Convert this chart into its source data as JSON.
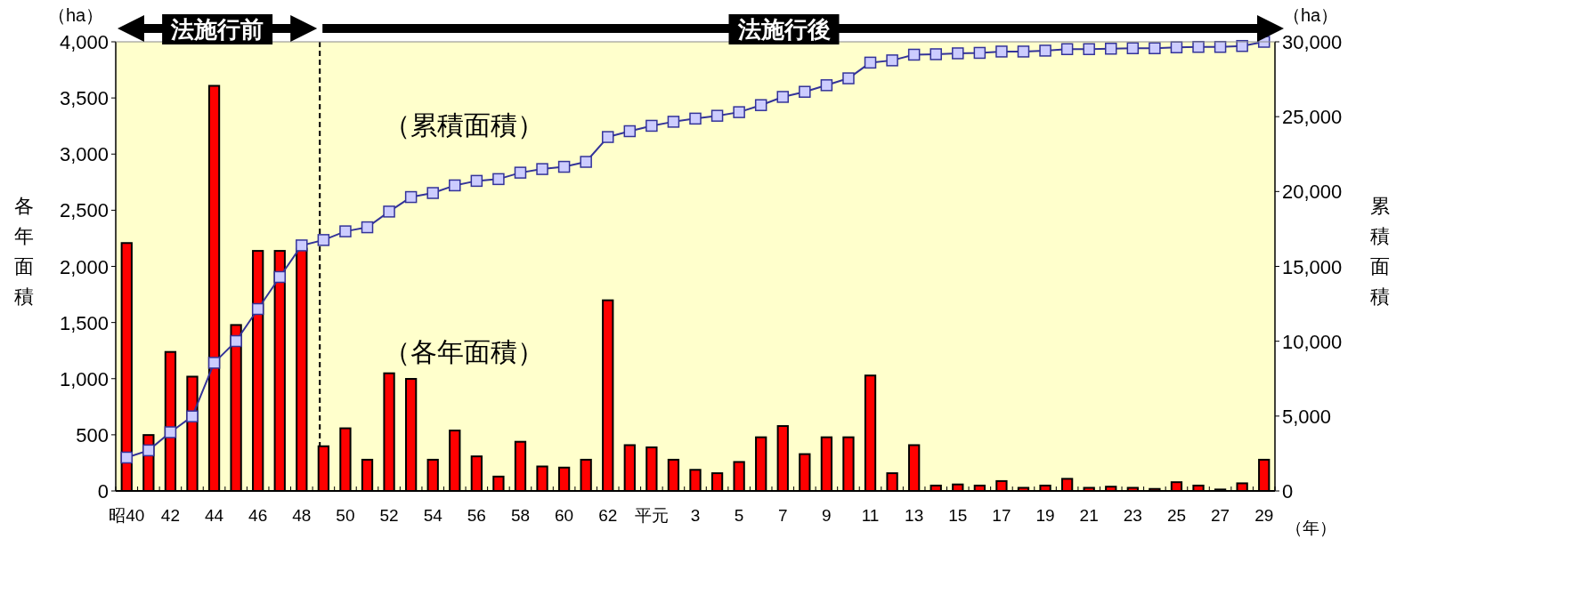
{
  "chart_data": {
    "type": "bar",
    "xlabel": "（年）",
    "ylabel": "各年面積",
    "y2label": "累積面積",
    "annotations": [
      "法施行前",
      "法施行後",
      "（ha）",
      "（ha）"
    ],
    "categories": [
      "昭40",
      null,
      "42",
      null,
      "44",
      null,
      "46",
      null,
      "48",
      null,
      "50",
      null,
      "52",
      null,
      "54",
      null,
      "56",
      null,
      "58",
      null,
      "60",
      null,
      "62",
      null,
      "平元",
      null,
      "3",
      null,
      "5",
      null,
      "7",
      null,
      "9",
      null,
      "11",
      null,
      "13",
      null,
      "15",
      null,
      "17",
      null,
      "19",
      null,
      "21",
      null,
      "23",
      null,
      "25",
      null,
      "27",
      null,
      "29"
    ],
    "series": [
      {
        "name": "（各年面積）",
        "color": "#ff0000",
        "values": [
          2200,
          490,
          1230,
          1010,
          3600,
          1470,
          2130,
          2130,
          2150,
          390,
          550,
          270,
          1040,
          990,
          270,
          530,
          300,
          120,
          430,
          210,
          200,
          270,
          1690,
          400,
          380,
          270,
          180,
          150,
          250,
          470,
          570,
          320,
          470,
          470,
          1020,
          150,
          400,
          40,
          50,
          40,
          80,
          20,
          40,
          100,
          20,
          30,
          20,
          10,
          70,
          40,
          5,
          60,
          270
        ]
      },
      {
        "name": "（累積面積）",
        "type": "line",
        "axis": "y2",
        "color": "#333399",
        "values": [
          2230,
          2710,
          3920,
          4980,
          8560,
          10010,
          12150,
          14290,
          16400,
          16760,
          17340,
          17610,
          18660,
          19630,
          19900,
          20410,
          20710,
          20830,
          21260,
          21500,
          21650,
          21980,
          23640,
          24030,
          24390,
          24660,
          24870,
          25060,
          25300,
          25770,
          26320,
          26660,
          27100,
          27560,
          28610,
          28760,
          29140,
          29170,
          29230,
          29260,
          29350,
          29350,
          29410,
          29510,
          29510,
          29540,
          29570,
          29570,
          29630,
          29660,
          29660,
          29720,
          30000
        ]
      }
    ],
    "ylim": [
      0,
      4000
    ],
    "yticks": [
      0,
      500,
      {
        "value": 1000,
        "label": "1,000"
      },
      {
        "value": 1500,
        "label": "1,500"
      },
      {
        "value": 2000,
        "label": "2,000"
      },
      {
        "value": 2500,
        "label": "2,500"
      },
      {
        "value": 3000,
        "label": "3,000"
      },
      {
        "value": 3500,
        "label": "3,500"
      },
      {
        "value": 4000,
        "label": "4,000"
      }
    ],
    "y2lim": [
      0,
      30000
    ],
    "y2ticks": [
      0,
      {
        "value": 5000,
        "label": "5,000"
      },
      {
        "value": 10000,
        "label": "10,000"
      },
      {
        "value": 15000,
        "label": "15,000"
      },
      {
        "value": 20000,
        "label": "20,000"
      },
      {
        "value": 25000,
        "label": "25,000"
      },
      {
        "value": 30000,
        "label": "30,000"
      }
    ],
    "marker": "square",
    "line_style": "solid",
    "grid": false,
    "legend": false
  }
}
